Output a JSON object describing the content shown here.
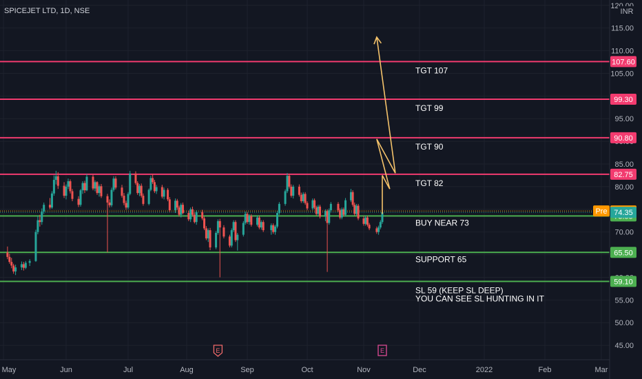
{
  "header": {
    "symbol_title": "SPICEJET LTD, 1D, NSE",
    "currency": "INR"
  },
  "colors": {
    "background": "#131722",
    "grid": "#1e222d",
    "axis_text": "#b2b5be",
    "up": "#26a69a",
    "down": "#ef5350",
    "target_line": "#f23b6f",
    "support_line": "#4caf50",
    "projection": "#f5c36b",
    "pre_tag": "#ff9800",
    "current_tag": "#26a69a"
  },
  "chart_data": {
    "type": "candlestick",
    "title": "SPICEJET LTD, 1D, NSE",
    "x_ticks": [
      "May",
      "Jun",
      "Jul",
      "Aug",
      "Sep",
      "Oct",
      "Nov",
      "Dec",
      "2022",
      "Feb",
      "Mar"
    ],
    "y_ticks": [
      "45.00",
      "50.00",
      "55.00",
      "60.00",
      "65.00",
      "70.00",
      "75.00",
      "80.00",
      "85.00",
      "90.00",
      "95.00",
      "100.00",
      "105.00",
      "110.00",
      "115.00",
      "120.00"
    ],
    "ylim": [
      43.5,
      120.5
    ],
    "grid": true,
    "levels": [
      {
        "name": "target",
        "value": 107.6,
        "tag": "107.60",
        "label": "TGT 107"
      },
      {
        "name": "target",
        "value": 99.3,
        "tag": "99.30",
        "label": "TGT 99"
      },
      {
        "name": "target",
        "value": 90.8,
        "tag": "90.80",
        "label": "TGT 90"
      },
      {
        "name": "target",
        "value": 82.75,
        "tag": "82.75",
        "label": "TGT 82"
      },
      {
        "name": "buy",
        "value": 73.55,
        "tag": "73.55",
        "label": "BUY NEAR 73"
      },
      {
        "name": "support",
        "value": 65.5,
        "tag": "65.50",
        "label": "SUPPORT 65"
      },
      {
        "name": "stoploss",
        "value": 59.1,
        "tag": "59.10",
        "label": "SL 59 (KEEP SL DEEP)",
        "label2": "YOU CAN SEE SL HUNTING IN IT"
      }
    ],
    "price_tags": [
      {
        "label": "Pre",
        "value": 74.65,
        "text": "74.65"
      },
      {
        "label": "",
        "value": 74.35,
        "text": "74.35"
      }
    ],
    "events": [
      {
        "date": "2021-08-17",
        "label": "E"
      },
      {
        "date": "2021-11-11",
        "label": "E"
      }
    ],
    "projection_path": [
      {
        "date": "2021-11-11",
        "price": 74.0
      },
      {
        "date": "2021-11-11",
        "price": 82.5
      },
      {
        "date": "2021-11-15",
        "price": 79.5
      },
      {
        "date": "2021-11-08",
        "price": 90.5
      },
      {
        "date": "2021-11-18",
        "price": 83.0
      },
      {
        "date": "2021-11-08",
        "price": 113.0
      }
    ],
    "candles_ohlc": [
      [
        "2021-05-03",
        65.5,
        66.8,
        64.0,
        64.5
      ],
      [
        "2021-05-04",
        64.5,
        65.2,
        63.0,
        63.4
      ],
      [
        "2021-05-05",
        63.4,
        64.3,
        62.0,
        62.6
      ],
      [
        "2021-05-06",
        62.6,
        63.0,
        60.8,
        61.3
      ],
      [
        "2021-05-07",
        61.3,
        62.8,
        60.5,
        62.2
      ],
      [
        "2021-05-10",
        62.2,
        63.5,
        61.6,
        62.9
      ],
      [
        "2021-05-11",
        62.9,
        63.4,
        61.5,
        62.1
      ],
      [
        "2021-05-12",
        62.1,
        63.6,
        61.8,
        63.2
      ],
      [
        "2021-05-14",
        63.2,
        64.0,
        62.5,
        63.6
      ],
      [
        "2021-05-17",
        63.6,
        70.5,
        63.4,
        70.0
      ],
      [
        "2021-05-18",
        70.0,
        73.5,
        69.5,
        72.6
      ],
      [
        "2021-05-19",
        72.6,
        73.8,
        71.2,
        72.2
      ],
      [
        "2021-05-20",
        72.2,
        75.2,
        71.6,
        74.5
      ],
      [
        "2021-05-21",
        74.5,
        76.5,
        74.0,
        76.0
      ],
      [
        "2021-05-24",
        76.0,
        77.5,
        75.0,
        75.4
      ],
      [
        "2021-05-25",
        75.4,
        79.0,
        75.1,
        78.5
      ],
      [
        "2021-05-26",
        78.5,
        82.5,
        78.0,
        81.5
      ],
      [
        "2021-05-27",
        81.5,
        83.5,
        80.5,
        82.3
      ],
      [
        "2021-05-28",
        82.3,
        83.2,
        79.5,
        80.2
      ],
      [
        "2021-05-31",
        80.2,
        81.0,
        77.5,
        78.0
      ],
      [
        "2021-06-01",
        78.0,
        80.5,
        77.2,
        80.0
      ],
      [
        "2021-06-02",
        80.0,
        81.8,
        79.5,
        81.2
      ],
      [
        "2021-06-03",
        81.2,
        81.6,
        78.5,
        79.0
      ],
      [
        "2021-06-04",
        79.0,
        79.5,
        76.8,
        77.3
      ],
      [
        "2021-06-07",
        77.3,
        77.9,
        75.5,
        76.0
      ],
      [
        "2021-06-08",
        76.0,
        79.5,
        75.6,
        79.2
      ],
      [
        "2021-06-09",
        79.2,
        81.2,
        78.4,
        80.8
      ],
      [
        "2021-06-10",
        80.8,
        81.3,
        78.6,
        79.2
      ],
      [
        "2021-06-11",
        79.2,
        82.8,
        79.0,
        82.2
      ],
      [
        "2021-06-14",
        82.2,
        82.6,
        79.2,
        79.6
      ],
      [
        "2021-06-15",
        79.6,
        81.4,
        79.0,
        81.0
      ],
      [
        "2021-06-16",
        81.0,
        81.2,
        78.2,
        78.6
      ],
      [
        "2021-06-17",
        78.6,
        80.5,
        77.8,
        80.1
      ],
      [
        "2021-06-18",
        80.1,
        80.6,
        77.5,
        77.9
      ],
      [
        "2021-06-21",
        77.9,
        78.4,
        65.5,
        76.5
      ],
      [
        "2021-06-22",
        76.5,
        77.2,
        75.4,
        75.9
      ],
      [
        "2021-06-23",
        75.9,
        79.8,
        75.5,
        79.3
      ],
      [
        "2021-06-24",
        79.3,
        82.3,
        78.9,
        81.8
      ],
      [
        "2021-06-25",
        81.8,
        82.3,
        79.4,
        79.8
      ],
      [
        "2021-06-28",
        79.8,
        80.4,
        77.6,
        78.0
      ],
      [
        "2021-06-29",
        78.0,
        78.6,
        75.9,
        76.4
      ],
      [
        "2021-06-30",
        76.4,
        76.9,
        74.9,
        75.4
      ],
      [
        "2021-07-01",
        75.4,
        78.8,
        75.0,
        78.4
      ],
      [
        "2021-07-02",
        78.4,
        83.5,
        78.1,
        82.9
      ],
      [
        "2021-07-05",
        82.9,
        83.4,
        80.4,
        80.8
      ],
      [
        "2021-07-06",
        80.8,
        81.2,
        78.2,
        78.6
      ],
      [
        "2021-07-07",
        78.6,
        80.6,
        77.9,
        80.2
      ],
      [
        "2021-07-08",
        80.2,
        80.7,
        77.6,
        78.0
      ],
      [
        "2021-07-09",
        78.0,
        78.5,
        75.8,
        76.2
      ],
      [
        "2021-07-12",
        76.2,
        79.6,
        75.9,
        79.3
      ],
      [
        "2021-07-13",
        79.3,
        82.4,
        79.0,
        81.9
      ],
      [
        "2021-07-14",
        81.9,
        82.8,
        80.6,
        81.0
      ],
      [
        "2021-07-15",
        81.0,
        81.5,
        78.6,
        79.0
      ],
      [
        "2021-07-16",
        79.0,
        80.4,
        78.4,
        79.9
      ],
      [
        "2021-07-19",
        79.9,
        80.4,
        77.4,
        77.8
      ],
      [
        "2021-07-20",
        77.8,
        79.8,
        77.2,
        79.3
      ],
      [
        "2021-07-22",
        79.3,
        79.7,
        76.8,
        77.2
      ],
      [
        "2021-07-23",
        77.2,
        77.7,
        74.4,
        74.8
      ],
      [
        "2021-07-26",
        74.8,
        77.4,
        74.2,
        76.9
      ],
      [
        "2021-07-27",
        76.9,
        77.3,
        74.9,
        75.4
      ],
      [
        "2021-07-28",
        75.4,
        75.8,
        73.4,
        73.8
      ],
      [
        "2021-07-29",
        73.8,
        76.4,
        73.2,
        76.0
      ],
      [
        "2021-07-30",
        76.0,
        76.5,
        73.9,
        74.2
      ],
      [
        "2021-08-02",
        74.2,
        74.7,
        72.4,
        72.8
      ],
      [
        "2021-08-03",
        72.8,
        75.4,
        72.2,
        75.0
      ],
      [
        "2021-08-04",
        75.0,
        75.6,
        73.4,
        73.8
      ],
      [
        "2021-08-05",
        73.8,
        74.3,
        71.9,
        72.2
      ],
      [
        "2021-08-06",
        72.2,
        74.8,
        71.6,
        74.4
      ],
      [
        "2021-08-09",
        74.4,
        74.9,
        72.6,
        73.0
      ],
      [
        "2021-08-10",
        73.0,
        73.4,
        70.4,
        70.8
      ],
      [
        "2021-08-11",
        70.8,
        71.3,
        68.2,
        68.6
      ],
      [
        "2021-08-12",
        68.6,
        70.8,
        67.8,
        70.4
      ],
      [
        "2021-08-13",
        70.4,
        70.9,
        66.0,
        66.6
      ],
      [
        "2021-08-16",
        66.6,
        70.2,
        66.2,
        69.8
      ],
      [
        "2021-08-17",
        69.8,
        72.8,
        69.4,
        72.4
      ],
      [
        "2021-08-18",
        72.4,
        72.9,
        60.0,
        71.0
      ],
      [
        "2021-08-20",
        71.0,
        71.5,
        68.6,
        69.0
      ],
      [
        "2021-08-23",
        69.0,
        69.4,
        66.6,
        67.0
      ],
      [
        "2021-08-24",
        67.0,
        70.8,
        66.6,
        70.4
      ],
      [
        "2021-08-25",
        70.4,
        72.6,
        70.0,
        72.2
      ],
      [
        "2021-08-26",
        72.2,
        72.6,
        67.8,
        68.2
      ],
      [
        "2021-08-27",
        68.2,
        69.8,
        65.9,
        69.4
      ],
      [
        "2021-08-30",
        69.4,
        72.4,
        69.0,
        72.0
      ],
      [
        "2021-08-31",
        72.0,
        74.5,
        71.6,
        74.0
      ],
      [
        "2021-09-01",
        74.0,
        74.4,
        71.8,
        72.2
      ],
      [
        "2021-09-02",
        72.2,
        73.9,
        71.6,
        73.5
      ],
      [
        "2021-09-03",
        73.5,
        73.9,
        71.2,
        71.6
      ],
      [
        "2021-09-06",
        71.6,
        73.6,
        71.2,
        73.2
      ],
      [
        "2021-09-07",
        73.2,
        73.6,
        70.6,
        71.0
      ],
      [
        "2021-09-08",
        71.0,
        72.6,
        70.5,
        72.2
      ],
      [
        "2021-09-09",
        72.2,
        72.6,
        70.0,
        70.4
      ],
      [
        "2021-09-13",
        70.4,
        71.9,
        69.4,
        71.5
      ],
      [
        "2021-09-14",
        71.5,
        71.9,
        69.6,
        70.0
      ],
      [
        "2021-09-15",
        70.0,
        71.6,
        69.4,
        71.2
      ],
      [
        "2021-09-16",
        71.2,
        74.6,
        70.8,
        74.2
      ],
      [
        "2021-09-17",
        74.2,
        76.6,
        73.8,
        76.2
      ],
      [
        "2021-09-20",
        76.2,
        79.4,
        75.8,
        79.0
      ],
      [
        "2021-09-21",
        79.0,
        83.0,
        78.6,
        82.4
      ],
      [
        "2021-09-22",
        82.4,
        82.8,
        79.6,
        80.0
      ],
      [
        "2021-09-23",
        80.0,
        80.5,
        77.6,
        78.0
      ],
      [
        "2021-09-24",
        78.0,
        80.4,
        77.4,
        80.0
      ],
      [
        "2021-09-27",
        80.0,
        80.5,
        77.8,
        78.2
      ],
      [
        "2021-09-28",
        78.2,
        78.7,
        76.4,
        76.8
      ],
      [
        "2021-09-29",
        76.8,
        78.8,
        76.4,
        78.4
      ],
      [
        "2021-09-30",
        78.4,
        78.8,
        76.0,
        76.4
      ],
      [
        "2021-10-01",
        76.4,
        76.8,
        74.8,
        75.2
      ],
      [
        "2021-10-04",
        75.2,
        77.4,
        74.8,
        77.0
      ],
      [
        "2021-10-05",
        77.0,
        77.4,
        75.0,
        75.4
      ],
      [
        "2021-10-06",
        75.4,
        75.8,
        73.6,
        74.0
      ],
      [
        "2021-10-07",
        74.0,
        76.0,
        73.6,
        75.6
      ],
      [
        "2021-10-08",
        75.6,
        76.0,
        73.0,
        73.4
      ],
      [
        "2021-10-11",
        73.4,
        75.0,
        72.4,
        74.6
      ],
      [
        "2021-10-12",
        74.6,
        75.0,
        61.2,
        72.0
      ],
      [
        "2021-10-13",
        72.0,
        75.2,
        71.6,
        74.8
      ],
      [
        "2021-10-14",
        74.8,
        76.6,
        74.4,
        76.2
      ],
      [
        "2021-10-18",
        76.2,
        76.6,
        74.4,
        74.8
      ],
      [
        "2021-10-19",
        74.8,
        75.2,
        72.8,
        73.2
      ],
      [
        "2021-10-20",
        73.2,
        75.4,
        72.8,
        75.0
      ],
      [
        "2021-10-21",
        75.0,
        75.4,
        73.4,
        73.8
      ],
      [
        "2021-10-22",
        73.8,
        77.5,
        73.4,
        77.0
      ],
      [
        "2021-10-25",
        77.0,
        79.5,
        76.6,
        78.8
      ],
      [
        "2021-10-26",
        78.8,
        79.2,
        75.6,
        76.0
      ],
      [
        "2021-10-27",
        76.0,
        76.5,
        73.6,
        74.0
      ],
      [
        "2021-10-28",
        74.0,
        76.2,
        73.6,
        75.8
      ],
      [
        "2021-10-29",
        75.8,
        76.2,
        72.6,
        73.0
      ],
      [
        "2021-11-01",
        73.0,
        73.5,
        71.4,
        71.8
      ],
      [
        "2021-11-02",
        71.8,
        73.6,
        71.4,
        73.2
      ],
      [
        "2021-11-03",
        73.2,
        73.6,
        71.2,
        71.6
      ],
      [
        "2021-11-04",
        71.6,
        72.0,
        70.4,
        70.8
      ],
      [
        "2021-11-08",
        70.8,
        71.2,
        69.6,
        70.0
      ],
      [
        "2021-11-09",
        70.0,
        71.4,
        69.4,
        71.0
      ],
      [
        "2021-11-10",
        71.0,
        72.6,
        70.6,
        72.2
      ],
      [
        "2021-11-11",
        72.2,
        74.8,
        71.8,
        74.35
      ]
    ]
  }
}
